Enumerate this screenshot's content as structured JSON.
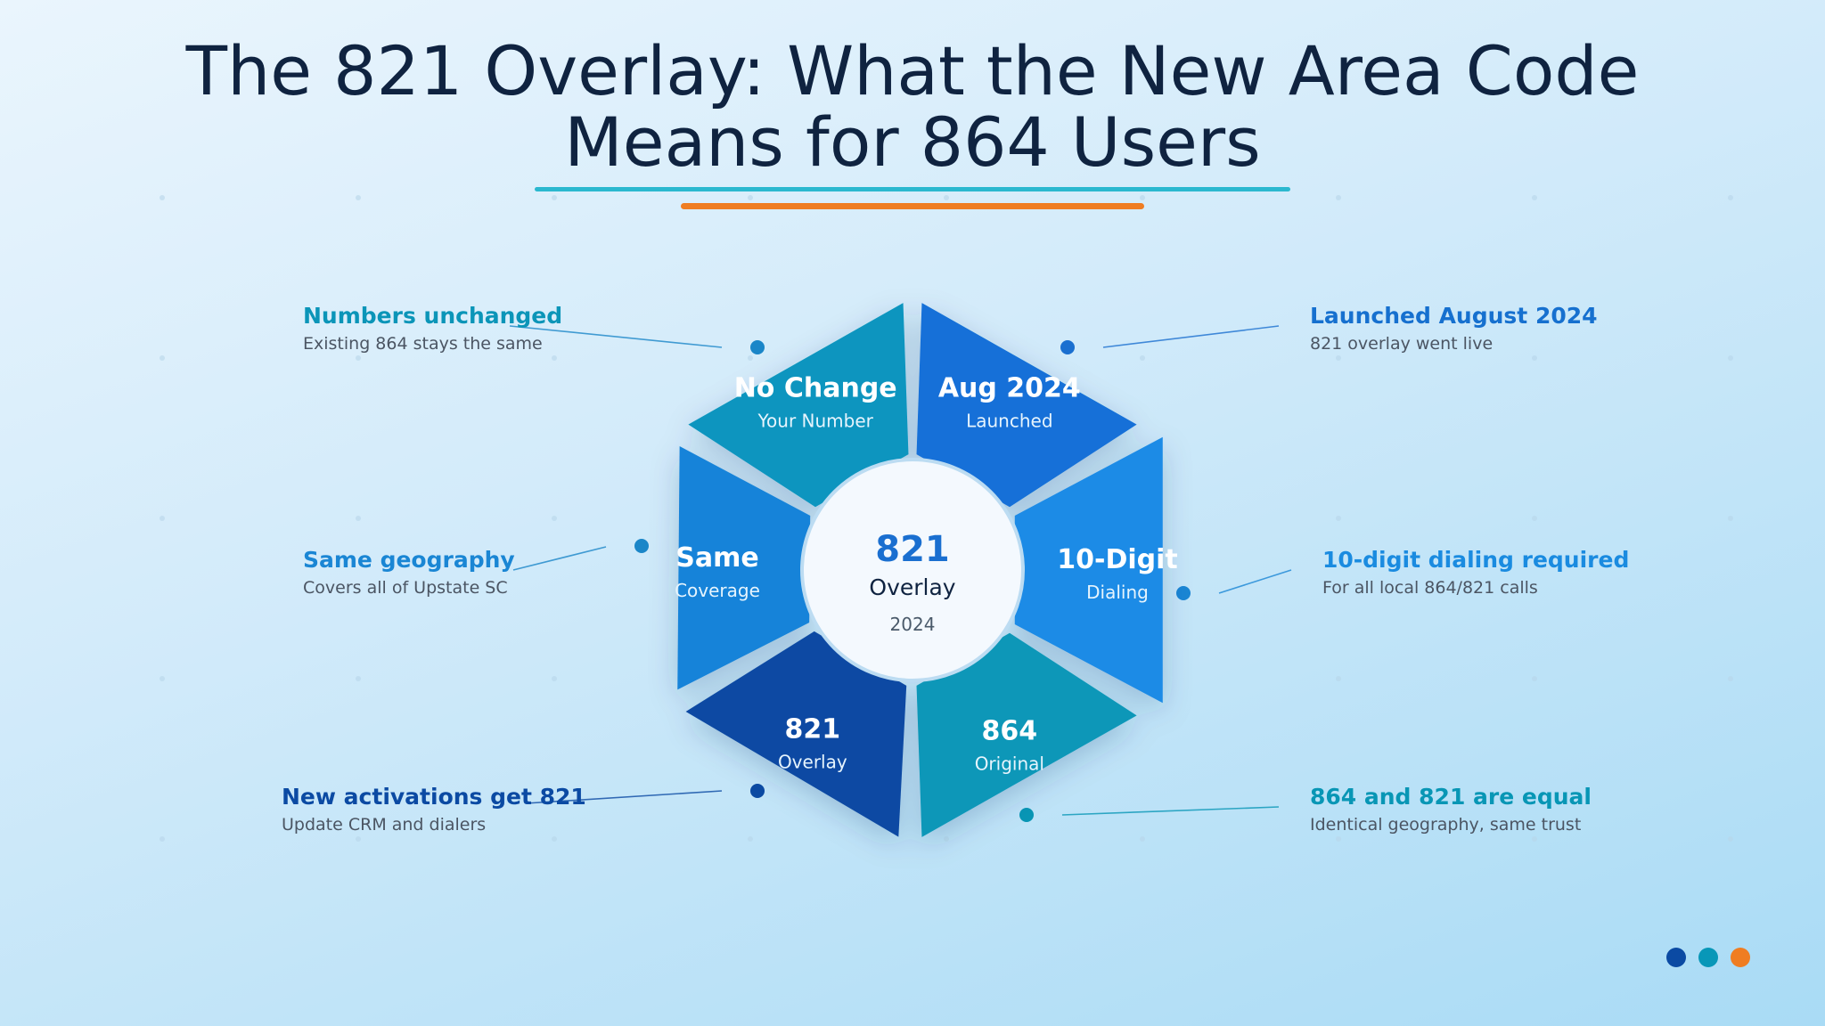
{
  "title": {
    "line1": "The 821 Overlay: What the New Area Code",
    "line2": "Means for 864 Users"
  },
  "center": {
    "code": "821",
    "label": "Overlay",
    "year": "2024"
  },
  "segments": [
    {
      "title": "Aug 2024",
      "subtitle": "Launched",
      "color": "#1270d8"
    },
    {
      "title": "10-Digit",
      "subtitle": "Dialing",
      "color": "#1f8be6"
    },
    {
      "title": "864",
      "subtitle": "Original",
      "color": "#0897b8"
    },
    {
      "title": "821",
      "subtitle": "Overlay",
      "color": "#0b4aa3"
    },
    {
      "title": "Same",
      "subtitle": "Coverage",
      "color": "#1683d9"
    },
    {
      "title": "No Change",
      "subtitle": "Your Number",
      "color": "#0a95bf"
    }
  ],
  "callouts": {
    "numbers_unchanged": {
      "heading": "Numbers unchanged",
      "description": "Existing 864 stays the same",
      "color": "#0b95b8"
    },
    "same_geography": {
      "heading": "Same geography",
      "description": "Covers all of Upstate SC",
      "color": "#1a86d4"
    },
    "new_activations": {
      "heading": "New activations get 821",
      "description": "Update CRM and dialers",
      "color": "#0b4aa3"
    },
    "launched": {
      "heading": "Launched August 2024",
      "description": "821 overlay went live",
      "color": "#1670cf"
    },
    "ten_digit": {
      "heading": "10-digit dialing required",
      "description": "For all local 864/821 calls",
      "color": "#1a8be0"
    },
    "equal": {
      "heading": "864 and 821 are equal",
      "description": "Identical geography, same trust",
      "color": "#0896b5"
    }
  },
  "legend_colors": [
    "#0b4aa3",
    "#0897b8",
    "#ef7d22"
  ],
  "accent_colors": {
    "title_rule": "#2bb8cf",
    "title_rule_accent": "#ef7d22"
  }
}
